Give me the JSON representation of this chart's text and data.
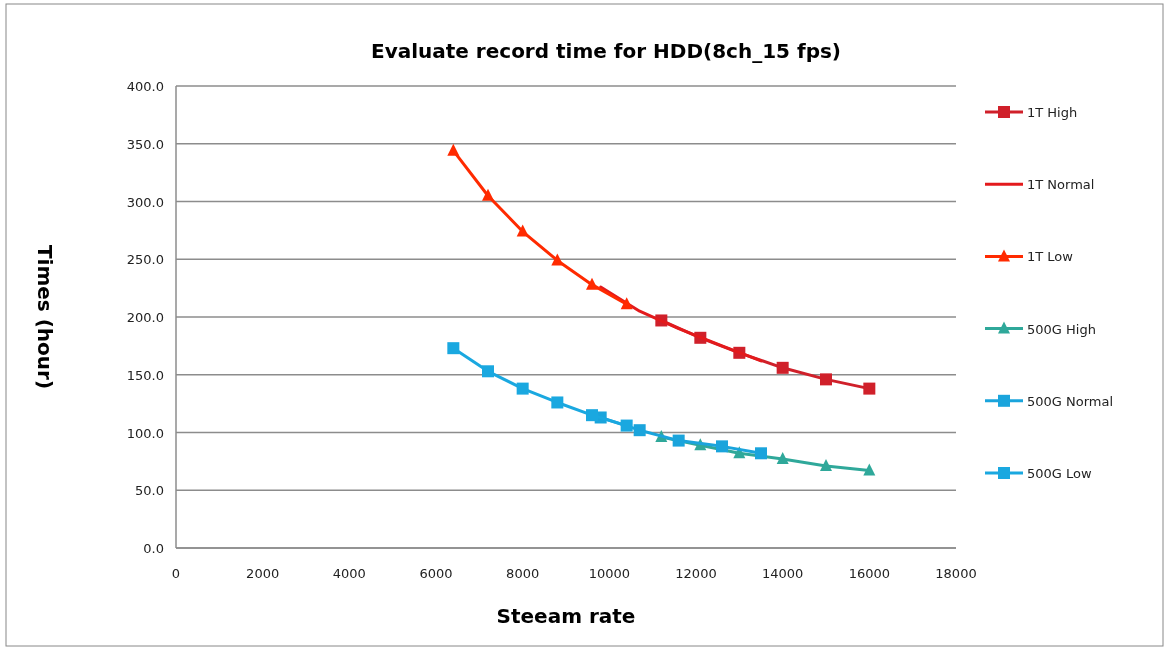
{
  "chart_data": {
    "type": "line",
    "title": "Evaluate record time for HDD(8ch_15 fps)",
    "xlabel": "Steeam rate",
    "ylabel": "Times  (hour)",
    "xlim": [
      0,
      18000
    ],
    "xticks": [
      0,
      2000,
      4000,
      6000,
      8000,
      10000,
      12000,
      14000,
      16000,
      18000
    ],
    "ylim": [
      0,
      400
    ],
    "yticks": [
      {
        "value": 0,
        "label": "0.0"
      },
      {
        "value": 50,
        "label": "50.0"
      },
      {
        "value": 100,
        "label": "100.0"
      },
      {
        "value": 150,
        "label": "150.0"
      },
      {
        "value": 200,
        "label": "200.0"
      },
      {
        "value": 250,
        "label": "250.0"
      },
      {
        "value": 300,
        "label": "300.0"
      },
      {
        "value": 350,
        "label": "350.0"
      },
      {
        "value": 400,
        "label": "400.0"
      }
    ],
    "grid": "y",
    "legend": "right",
    "line_style": "solid",
    "series": [
      {
        "name": "1T High",
        "color": "#d0202a",
        "marker": "square",
        "x": [
          11200,
          12100,
          13000,
          14000,
          15000,
          16000
        ],
        "values": [
          197,
          182,
          169,
          156,
          146,
          138
        ]
      },
      {
        "name": "1T Normal",
        "color": "#e31a1c",
        "marker": "none",
        "x": [
          9800,
          10700,
          11600,
          12600,
          13500
        ],
        "values": [
          226,
          205,
          190,
          175,
          162
        ]
      },
      {
        "name": "1T Low",
        "color": "#ff2a00",
        "marker": "triangle",
        "x": [
          6400,
          7200,
          8000,
          8800,
          9600,
          10400
        ],
        "values": [
          344,
          305,
          274,
          249,
          228,
          211
        ]
      },
      {
        "name": "500G High",
        "color": "#2fa89a",
        "marker": "triangle",
        "x": [
          11200,
          12100,
          13000,
          14000,
          15000,
          16000
        ],
        "values": [
          96,
          89,
          82,
          77,
          71,
          67
        ]
      },
      {
        "name": "500G Normal",
        "color": "#1aa4dc",
        "marker": "square",
        "x": [
          9800,
          10700,
          11600,
          12600,
          13500
        ],
        "values": [
          113,
          102,
          93,
          88,
          82
        ]
      },
      {
        "name": "500G Low",
        "color": "#1aa8e0",
        "marker": "square",
        "x": [
          6400,
          7200,
          8000,
          8800,
          9600,
          10400
        ],
        "values": [
          173,
          153,
          138,
          126,
          115,
          106
        ]
      }
    ]
  }
}
